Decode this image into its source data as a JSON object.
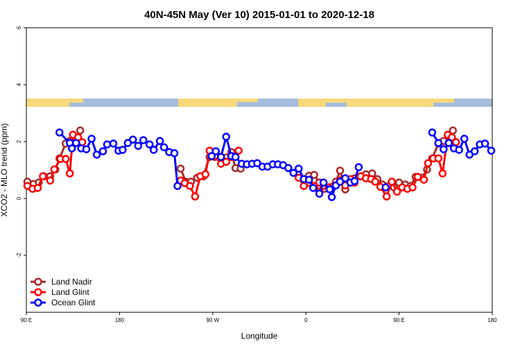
{
  "chart_data": {
    "type": "line",
    "title": "40N-45N May (Ver 10)   2015-01-01 to 2020-12-18",
    "xlabel": "Longitude",
    "ylabel": "XCO2 - MLO trend (ppm)",
    "xlim": [
      -270,
      180
    ],
    "xticks": [
      {
        "value": -270,
        "label": "90 E"
      },
      {
        "value": -180,
        "label": "180"
      },
      {
        "value": -90,
        "label": "90 W"
      },
      0,
      {
        "value": 90,
        "label": "90 E"
      },
      180
    ],
    "ylim": [
      -4,
      6
    ],
    "yticks": [
      -2,
      0,
      2,
      4,
      6
    ],
    "legend": "bottom-left",
    "series": [
      {
        "name": "Land Nadir",
        "color": "#a52a2a",
        "x": [
          -269,
          -263,
          -258,
          -253,
          -247,
          -242,
          -238,
          -232,
          -228,
          -223,
          -218,
          -190,
          -121,
          -116,
          -111,
          -105,
          -99,
          -93,
          -88,
          -82,
          -77,
          -72,
          -68,
          -63,
          -30,
          3,
          8,
          13,
          18,
          23,
          29,
          33,
          38,
          43,
          47,
          53,
          58,
          64,
          69,
          74,
          80,
          85,
          90,
          96,
          101,
          106,
          112,
          117,
          122,
          128,
          133,
          138,
          142
        ],
        "values": [
          0.59,
          0.51,
          0.56,
          0.78,
          0.78,
          1.02,
          1.41,
          1.93,
          2.02,
          1.98,
          2.39,
          null,
          1.05,
          0.59,
          0.59,
          0.73,
          0.78,
          1.46,
          1.46,
          1.39,
          1.44,
          1.63,
          1.07,
          1.05,
          null,
          0.8,
          0.83,
          0.56,
          0.34,
          0.39,
          0.59,
          0.98,
          0.32,
          0.56,
          0.71,
          0.78,
          0.85,
          0.88,
          0.68,
          0.49,
          0.44,
          0.39,
          0.56,
          0.49,
          0.44,
          0.76,
          0.73,
          1.02,
          1.41,
          1.93,
          2.02,
          1.95,
          2.39
        ]
      },
      {
        "name": "Land Glint",
        "color": "#ff0000",
        "x": [
          -269,
          -264,
          -259,
          -254,
          -247,
          -243,
          -237,
          -232,
          -228,
          -225,
          -220,
          -216,
          -190,
          -121,
          -117,
          -112,
          -107,
          -102,
          -97,
          -93,
          -88,
          -82,
          -77,
          -72,
          -65,
          -30,
          -7,
          -2,
          3,
          8,
          13,
          17,
          22,
          27,
          33,
          38,
          43,
          47,
          53,
          58,
          63,
          67,
          72,
          78,
          83,
          88,
          93,
          98,
          103,
          108,
          114,
          118,
          123,
          128,
          132,
          137,
          141,
          145
        ],
        "values": [
          0.44,
          0.34,
          0.37,
          0.78,
          0.63,
          1.02,
          1.39,
          1.39,
          0.88,
          2.24,
          2.15,
          1.98,
          null,
          0.63,
          0.54,
          0.44,
          0.07,
          0.78,
          0.85,
          1.68,
          1.49,
          1.22,
          1.29,
          1.46,
          1.68,
          null,
          0.73,
          0.44,
          0.56,
          0.44,
          0.24,
          0.44,
          0.39,
          0.44,
          0.63,
          0.46,
          0.68,
          0.56,
          0.78,
          0.71,
          0.68,
          0.59,
          0.41,
          0.07,
          0.59,
          0.24,
          0.39,
          0.34,
          0.39,
          0.76,
          0.66,
          1.24,
          1.41,
          1.41,
          0.88,
          2.24,
          2.15,
          1.98
        ]
      },
      {
        "name": "Ocean Glint",
        "color": "#0000ff",
        "x": [
          -238,
          -228,
          -226,
          -222,
          -217,
          -212,
          -207,
          -202,
          -196,
          -192,
          -186,
          -181,
          -177,
          -172,
          -167,
          -162,
          -157,
          -151,
          -147,
          -141,
          -137,
          -132,
          -127,
          -124,
          -115,
          -91,
          -87,
          -82,
          -77,
          -72,
          -68,
          -62,
          -57,
          -52,
          -47,
          -42,
          -37,
          -32,
          -27,
          -22,
          -17,
          -12,
          -7,
          -2,
          3,
          7,
          13,
          17,
          23,
          25,
          29,
          33,
          38,
          43,
          47,
          51,
          70,
          77,
          100,
          122,
          128,
          133,
          138,
          143,
          148,
          153,
          158,
          163,
          168,
          173,
          179
        ],
        "values": [
          2.32,
          1.95,
          1.76,
          1.95,
          1.76,
          1.73,
          2.1,
          1.54,
          1.66,
          1.9,
          1.93,
          1.68,
          1.71,
          1.95,
          2.07,
          1.85,
          2.05,
          1.9,
          1.71,
          2.02,
          1.8,
          1.63,
          1.59,
          0.44,
          null,
          1.49,
          1.66,
          1.46,
          2.17,
          1.49,
          1.46,
          1.22,
          1.2,
          1.22,
          1.24,
          1.12,
          1.12,
          1.2,
          1.2,
          1.17,
          1.07,
          0.9,
          1.05,
          0.68,
          0.66,
          0.37,
          0.17,
          0.56,
          0.32,
          0.05,
          0.46,
          0.59,
          0.71,
          0.56,
          0.61,
          1.1,
          null,
          0.39,
          null,
          2.32,
          1.95,
          1.73,
          1.95,
          1.76,
          1.71,
          2.1,
          1.54,
          1.66,
          1.9,
          1.93,
          1.68
        ]
      }
    ]
  }
}
